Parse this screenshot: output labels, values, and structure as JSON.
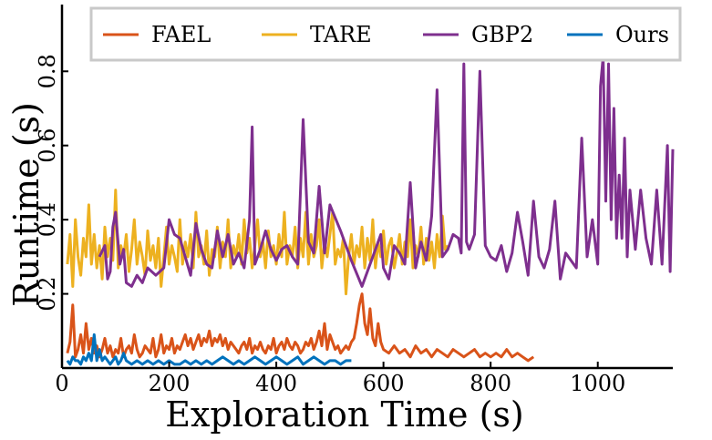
{
  "chart_data": {
    "type": "line",
    "title": "",
    "xlabel": "Exploration Time (s)",
    "ylabel": "Runtime (s)",
    "xlim": [
      0,
      1140
    ],
    "ylim": [
      0,
      0.98
    ],
    "xticks": [
      0,
      200,
      400,
      600,
      800,
      1000
    ],
    "yticks": [
      0.2,
      0.4,
      0.6,
      0.8
    ],
    "x_tick_labels": [
      "0",
      "200",
      "400",
      "600",
      "800",
      "1000"
    ],
    "y_tick_labels": [
      "0.2",
      "0.4",
      "0.6",
      "0.8"
    ],
    "grid": false,
    "legend_position": "top",
    "series": [
      {
        "name": "FAEL",
        "color": "#D95319",
        "x": [
          10,
          15,
          20,
          25,
          30,
          35,
          40,
          45,
          50,
          55,
          60,
          65,
          70,
          75,
          80,
          85,
          90,
          95,
          100,
          105,
          110,
          115,
          120,
          125,
          130,
          135,
          140,
          145,
          150,
          155,
          160,
          165,
          170,
          175,
          180,
          185,
          190,
          195,
          200,
          205,
          210,
          215,
          220,
          225,
          230,
          235,
          240,
          245,
          250,
          255,
          260,
          265,
          270,
          275,
          280,
          285,
          290,
          295,
          300,
          305,
          310,
          315,
          320,
          325,
          330,
          335,
          340,
          345,
          350,
          355,
          360,
          365,
          370,
          375,
          380,
          385,
          390,
          395,
          400,
          405,
          410,
          415,
          420,
          425,
          430,
          435,
          440,
          445,
          450,
          455,
          460,
          465,
          470,
          475,
          480,
          485,
          490,
          495,
          500,
          505,
          510,
          515,
          520,
          525,
          530,
          535,
          540,
          545,
          550,
          555,
          560,
          565,
          570,
          575,
          580,
          585,
          590,
          595,
          600,
          610,
          620,
          630,
          640,
          650,
          660,
          670,
          680,
          690,
          700,
          710,
          720,
          730,
          740,
          750,
          760,
          770,
          780,
          790,
          800,
          810,
          820,
          830,
          840,
          850,
          860,
          870,
          880
        ],
        "values": [
          0.04,
          0.07,
          0.17,
          0.03,
          0.05,
          0.09,
          0.04,
          0.12,
          0.05,
          0.08,
          0.04,
          0.06,
          0.03,
          0.05,
          0.08,
          0.04,
          0.06,
          0.03,
          0.05,
          0.04,
          0.08,
          0.03,
          0.05,
          0.06,
          0.04,
          0.09,
          0.05,
          0.03,
          0.04,
          0.06,
          0.05,
          0.04,
          0.08,
          0.03,
          0.05,
          0.09,
          0.04,
          0.06,
          0.05,
          0.08,
          0.04,
          0.06,
          0.05,
          0.07,
          0.09,
          0.06,
          0.08,
          0.05,
          0.07,
          0.09,
          0.06,
          0.08,
          0.07,
          0.1,
          0.06,
          0.08,
          0.07,
          0.09,
          0.06,
          0.08,
          0.05,
          0.07,
          0.06,
          0.05,
          0.04,
          0.06,
          0.07,
          0.05,
          0.08,
          0.04,
          0.06,
          0.05,
          0.07,
          0.05,
          0.04,
          0.06,
          0.05,
          0.08,
          0.04,
          0.06,
          0.07,
          0.05,
          0.08,
          0.06,
          0.05,
          0.07,
          0.06,
          0.04,
          0.05,
          0.07,
          0.06,
          0.08,
          0.05,
          0.07,
          0.1,
          0.06,
          0.12,
          0.05,
          0.09,
          0.07,
          0.05,
          0.06,
          0.04,
          0.05,
          0.06,
          0.05,
          0.07,
          0.08,
          0.12,
          0.17,
          0.2,
          0.12,
          0.09,
          0.16,
          0.08,
          0.06,
          0.12,
          0.07,
          0.05,
          0.04,
          0.06,
          0.04,
          0.05,
          0.03,
          0.06,
          0.04,
          0.05,
          0.03,
          0.05,
          0.04,
          0.03,
          0.05,
          0.04,
          0.03,
          0.04,
          0.05,
          0.03,
          0.04,
          0.03,
          0.04,
          0.03,
          0.05,
          0.03,
          0.04,
          0.03,
          0.02,
          0.03
        ]
      },
      {
        "name": "TARE",
        "color": "#EDB120",
        "x": [
          10,
          15,
          20,
          25,
          30,
          35,
          40,
          45,
          50,
          55,
          60,
          65,
          70,
          75,
          80,
          85,
          90,
          95,
          100,
          105,
          110,
          115,
          120,
          125,
          130,
          135,
          140,
          145,
          150,
          155,
          160,
          165,
          170,
          175,
          180,
          185,
          190,
          195,
          200,
          205,
          210,
          215,
          220,
          225,
          230,
          235,
          240,
          245,
          250,
          255,
          260,
          265,
          270,
          275,
          280,
          285,
          290,
          295,
          300,
          305,
          310,
          315,
          320,
          325,
          330,
          335,
          340,
          345,
          350,
          355,
          360,
          365,
          370,
          375,
          380,
          385,
          390,
          395,
          400,
          405,
          410,
          415,
          420,
          425,
          430,
          435,
          440,
          445,
          450,
          455,
          460,
          465,
          470,
          475,
          480,
          485,
          490,
          495,
          500,
          505,
          510,
          515,
          520,
          525,
          530,
          535,
          540,
          545,
          550,
          555,
          560,
          565,
          570,
          575,
          580,
          585,
          590,
          595,
          600,
          605,
          610,
          615,
          620,
          625,
          630,
          635,
          640,
          645,
          650,
          655,
          660,
          665,
          670,
          675,
          680,
          685,
          690,
          695,
          700,
          705,
          710,
          715,
          720
        ],
        "values": [
          0.28,
          0.36,
          0.22,
          0.4,
          0.3,
          0.25,
          0.35,
          0.3,
          0.44,
          0.28,
          0.36,
          0.27,
          0.33,
          0.24,
          0.38,
          0.3,
          0.35,
          0.29,
          0.48,
          0.27,
          0.33,
          0.3,
          0.36,
          0.26,
          0.32,
          0.4,
          0.28,
          0.34,
          0.3,
          0.25,
          0.37,
          0.29,
          0.33,
          0.27,
          0.35,
          0.22,
          0.3,
          0.38,
          0.28,
          0.33,
          0.3,
          0.26,
          0.4,
          0.28,
          0.34,
          0.3,
          0.36,
          0.27,
          0.42,
          0.3,
          0.33,
          0.28,
          0.37,
          0.25,
          0.32,
          0.3,
          0.38,
          0.27,
          0.34,
          0.3,
          0.4,
          0.27,
          0.33,
          0.3,
          0.36,
          0.28,
          0.4,
          0.31,
          0.35,
          0.27,
          0.33,
          0.4,
          0.3,
          0.34,
          0.27,
          0.37,
          0.3,
          0.33,
          0.28,
          0.36,
          0.3,
          0.42,
          0.28,
          0.33,
          0.3,
          0.38,
          0.27,
          0.35,
          0.3,
          0.42,
          0.28,
          0.36,
          0.3,
          0.33,
          0.4,
          0.27,
          0.34,
          0.3,
          0.36,
          0.42,
          0.28,
          0.32,
          0.3,
          0.35,
          0.2,
          0.3,
          0.36,
          0.28,
          0.33,
          0.3,
          0.38,
          0.27,
          0.35,
          0.29,
          0.4,
          0.27,
          0.34,
          0.3,
          0.37,
          0.28,
          0.33,
          0.35,
          0.27,
          0.31,
          0.36,
          0.28,
          0.34,
          0.3,
          0.4,
          0.27,
          0.33,
          0.3,
          0.38,
          0.28,
          0.35,
          0.29,
          0.34,
          0.27,
          0.36,
          0.3,
          0.41,
          0.32,
          0.33
        ]
      },
      {
        "name": "GBP2",
        "color": "#7E2F8E",
        "x": [
          70,
          80,
          85,
          90,
          95,
          100,
          108,
          115,
          120,
          130,
          140,
          150,
          160,
          175,
          190,
          200,
          210,
          220,
          230,
          240,
          250,
          260,
          270,
          280,
          290,
          300,
          310,
          320,
          330,
          340,
          350,
          355,
          360,
          370,
          380,
          390,
          400,
          410,
          420,
          430,
          440,
          450,
          460,
          470,
          480,
          490,
          500,
          520,
          540,
          560,
          580,
          595,
          600,
          610,
          620,
          630,
          640,
          650,
          660,
          670,
          680,
          690,
          700,
          710,
          720,
          730,
          740,
          745,
          750,
          755,
          760,
          770,
          780,
          790,
          800,
          810,
          820,
          830,
          840,
          850,
          860,
          870,
          880,
          890,
          900,
          910,
          920,
          930,
          940,
          950,
          960,
          970,
          980,
          990,
          1000,
          1005,
          1010,
          1015,
          1020,
          1025,
          1030,
          1035,
          1040,
          1045,
          1050,
          1055,
          1060,
          1070,
          1080,
          1090,
          1100,
          1110,
          1120,
          1130,
          1135,
          1140
        ],
        "values": [
          0.3,
          0.33,
          0.24,
          0.26,
          0.38,
          0.42,
          0.28,
          0.32,
          0.23,
          0.22,
          0.25,
          0.23,
          0.27,
          0.25,
          0.27,
          0.4,
          0.36,
          0.35,
          0.3,
          0.25,
          0.39,
          0.32,
          0.28,
          0.27,
          0.37,
          0.3,
          0.36,
          0.28,
          0.31,
          0.27,
          0.4,
          0.65,
          0.28,
          0.32,
          0.37,
          0.32,
          0.29,
          0.32,
          0.33,
          0.3,
          0.28,
          0.67,
          0.34,
          0.31,
          0.49,
          0.31,
          0.44,
          0.37,
          0.29,
          0.22,
          0.3,
          0.36,
          0.27,
          0.24,
          0.33,
          0.31,
          0.28,
          0.5,
          0.27,
          0.34,
          0.29,
          0.41,
          0.75,
          0.3,
          0.32,
          0.36,
          0.35,
          0.31,
          0.82,
          0.34,
          0.32,
          0.36,
          0.8,
          0.33,
          0.3,
          0.29,
          0.33,
          0.26,
          0.31,
          0.42,
          0.34,
          0.25,
          0.45,
          0.3,
          0.27,
          0.32,
          0.45,
          0.24,
          0.31,
          0.29,
          0.27,
          0.62,
          0.3,
          0.4,
          0.28,
          0.76,
          0.84,
          0.45,
          0.82,
          0.4,
          0.7,
          0.35,
          0.52,
          0.35,
          0.62,
          0.3,
          0.48,
          0.32,
          0.48,
          0.35,
          0.28,
          0.48,
          0.28,
          0.6,
          0.26,
          0.59
        ]
      },
      {
        "name": "Ours",
        "color": "#0072BD",
        "x": [
          10,
          15,
          20,
          25,
          30,
          35,
          40,
          45,
          50,
          55,
          60,
          65,
          70,
          75,
          80,
          85,
          90,
          95,
          100,
          105,
          110,
          115,
          120,
          130,
          140,
          150,
          160,
          170,
          180,
          190,
          200,
          210,
          220,
          230,
          240,
          250,
          260,
          270,
          280,
          290,
          300,
          310,
          320,
          330,
          340,
          350,
          360,
          370,
          380,
          390,
          400,
          410,
          420,
          430,
          440,
          450,
          460,
          470,
          480,
          490,
          500,
          510,
          520,
          530,
          540
        ],
        "values": [
          0.02,
          0.01,
          0.03,
          0.02,
          0.02,
          0.01,
          0.03,
          0.02,
          0.04,
          0.02,
          0.09,
          0.02,
          0.05,
          0.02,
          0.03,
          0.02,
          0.01,
          0.02,
          0.03,
          0.01,
          0.02,
          0.04,
          0.02,
          0.01,
          0.02,
          0.01,
          0.02,
          0.01,
          0.02,
          0.01,
          0.02,
          0.01,
          0.01,
          0.02,
          0.01,
          0.02,
          0.01,
          0.02,
          0.01,
          0.02,
          0.03,
          0.02,
          0.01,
          0.02,
          0.01,
          0.02,
          0.03,
          0.02,
          0.01,
          0.02,
          0.03,
          0.02,
          0.01,
          0.02,
          0.03,
          0.01,
          0.02,
          0.03,
          0.02,
          0.01,
          0.02,
          0.02,
          0.01,
          0.02,
          0.02
        ]
      }
    ]
  }
}
